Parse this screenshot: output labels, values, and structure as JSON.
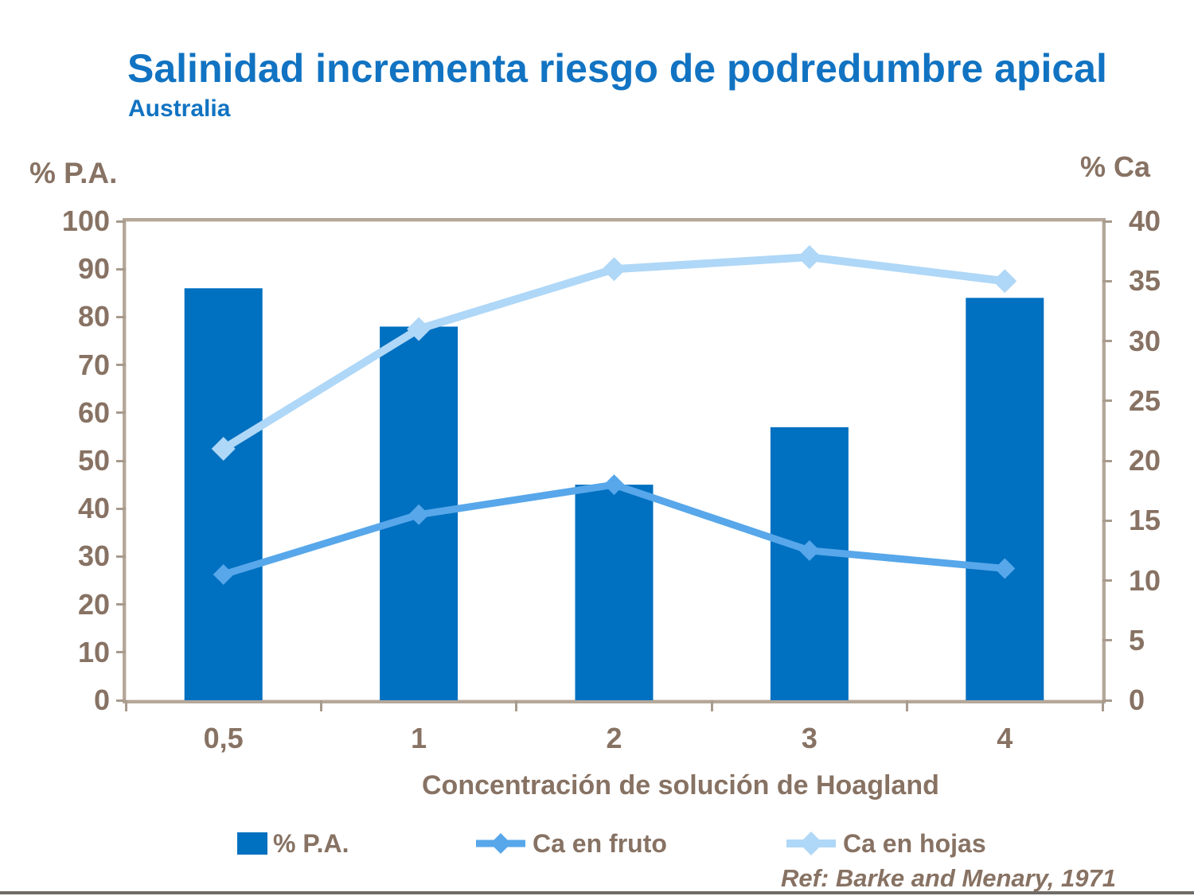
{
  "slide": {
    "title": "Salinidad incrementa riesgo de podredumbre apical",
    "subtitle": "Australia",
    "reference": "Ref: Barke and Menary, 1971"
  },
  "colors": {
    "title_blue": "#1173C2",
    "bar_blue": "#0070C0",
    "fruto_line_blue": "#57A7EA",
    "hojas_line_blue": "#AFD7F7",
    "axis_text_brown": "#877263",
    "frame_tan": "#B4A89A",
    "bottom_rule_gray": "#6F6B66"
  },
  "chart_data": {
    "type": "combo-bar-line",
    "categories": [
      "0,5",
      "1",
      "2",
      "3",
      "4"
    ],
    "bar_series": {
      "name": "% P.A.",
      "axis": "left",
      "color": "#0070C0",
      "values": [
        86,
        78,
        45,
        57,
        84
      ]
    },
    "line_series": [
      {
        "name": "Ca en fruto",
        "axis": "right",
        "color": "#57A7EA",
        "marker": "diamond",
        "values": [
          10.5,
          15.5,
          18,
          12.5,
          11
        ]
      },
      {
        "name": "Ca en hojas",
        "axis": "right",
        "color": "#AFD7F7",
        "marker": "diamond",
        "values": [
          21,
          31,
          36,
          37,
          35
        ]
      }
    ],
    "left_axis": {
      "title": "% P.A.",
      "min": 0,
      "max": 100,
      "tick_step": 10,
      "ticks": [
        0,
        10,
        20,
        30,
        40,
        50,
        60,
        70,
        80,
        90,
        100
      ]
    },
    "right_axis": {
      "title": "% Ca",
      "min": 0,
      "max": 40,
      "tick_step": 5,
      "ticks": [
        0,
        5,
        10,
        15,
        20,
        25,
        30,
        35,
        40
      ]
    },
    "xlabel": "Concentración de solución de Hoagland",
    "legend": [
      "% P.A.",
      "Ca en fruto",
      "Ca en hojas"
    ],
    "legend_position": "bottom",
    "grid": false
  }
}
